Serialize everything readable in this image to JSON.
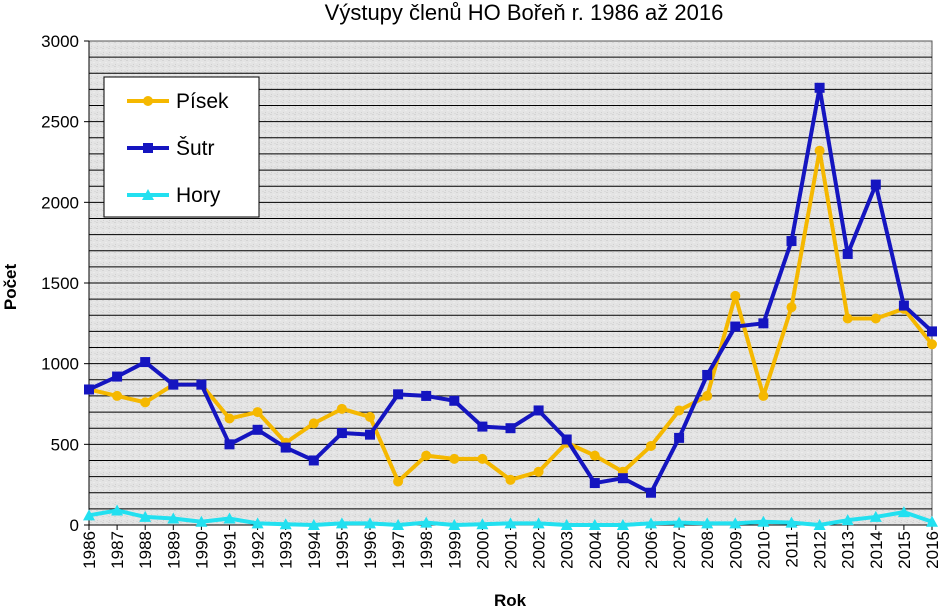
{
  "chart_data": {
    "type": "line",
    "title": "Výstupy členů HO Bořeň r. 1986 až 2016",
    "xlabel": "Rok",
    "ylabel": "Počet",
    "ylim": [
      0,
      3000
    ],
    "yticks": [
      0,
      500,
      1000,
      1500,
      2000,
      2500,
      3000
    ],
    "grid": true,
    "legend_position": "top-left",
    "x": [
      "1986",
      "1987",
      "1988",
      "1989",
      "1990",
      "1991",
      "1992",
      "1993",
      "1994",
      "1995",
      "1996",
      "1997",
      "1998",
      "1999",
      "2000",
      "2001",
      "2002",
      "2003",
      "2004",
      "2005",
      "2006",
      "2007",
      "2008",
      "2009",
      "2010",
      "2011",
      "2012",
      "2013",
      "2014",
      "2015",
      "2016"
    ],
    "series": [
      {
        "name": "Písek",
        "color": "#f5b800",
        "marker": "circle",
        "values": [
          840,
          800,
          760,
          870,
          870,
          660,
          700,
          510,
          630,
          720,
          670,
          270,
          430,
          410,
          410,
          280,
          330,
          510,
          430,
          330,
          490,
          710,
          800,
          1420,
          800,
          1350,
          2320,
          1280,
          1280,
          1340,
          1120
        ]
      },
      {
        "name": "Šutr",
        "color": "#1515c0",
        "marker": "square",
        "values": [
          840,
          920,
          1010,
          870,
          870,
          500,
          590,
          480,
          400,
          570,
          560,
          810,
          800,
          770,
          610,
          600,
          710,
          530,
          260,
          290,
          200,
          540,
          930,
          1230,
          1250,
          1760,
          2710,
          1680,
          2110,
          1360,
          1200
        ]
      },
      {
        "name": "Hory",
        "color": "#22e0f0",
        "marker": "triangle",
        "values": [
          60,
          90,
          50,
          40,
          20,
          40,
          10,
          5,
          0,
          10,
          10,
          0,
          15,
          0,
          5,
          10,
          10,
          0,
          0,
          0,
          10,
          15,
          10,
          10,
          20,
          15,
          0,
          30,
          50,
          80,
          20
        ]
      }
    ]
  }
}
